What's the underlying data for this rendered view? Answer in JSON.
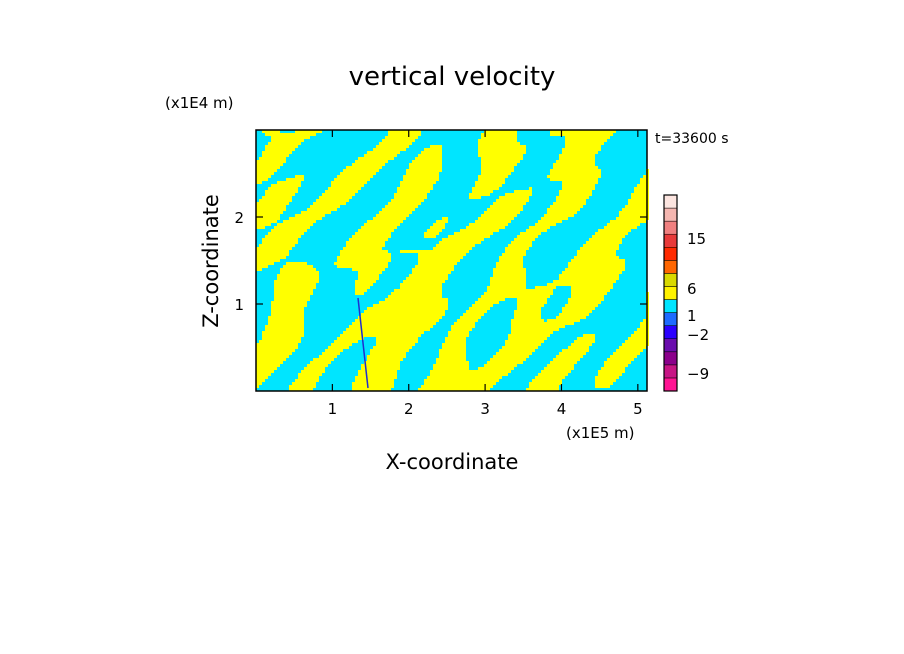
{
  "chart_data": {
    "type": "heatmap",
    "title": "vertical velocity",
    "xlabel": "X-coordinate",
    "ylabel": "Z-coordinate",
    "x_unit": "(x1E5 m)",
    "y_unit": "(x1E4 m)",
    "time_label": "t=33600 s",
    "xlim": [
      0,
      5.12
    ],
    "ylim": [
      0,
      3.0
    ],
    "x_ticks": [
      1,
      2,
      3,
      4,
      5
    ],
    "y_ticks": [
      1,
      2
    ],
    "colorbar": {
      "tick_values": [
        15,
        6,
        1,
        -2,
        -9
      ],
      "tick_labels": [
        "15",
        "6",
        "1",
        "−2",
        "−9"
      ],
      "colors": [
        "#ff1493",
        "#c71585",
        "#8b008b",
        "#6a0dad",
        "#2b00ff",
        "#1e6bff",
        "#00e5ff",
        "#fff200",
        "#d9d900",
        "#ff6600",
        "#ff2a00",
        "#e83a3a",
        "#f08080",
        "#f4b6b0",
        "#fce5e0"
      ]
    },
    "field_colors": {
      "positive": "#ffff00",
      "negative": "#00e5ff",
      "strong_negative": "#1f2fd0"
    }
  }
}
